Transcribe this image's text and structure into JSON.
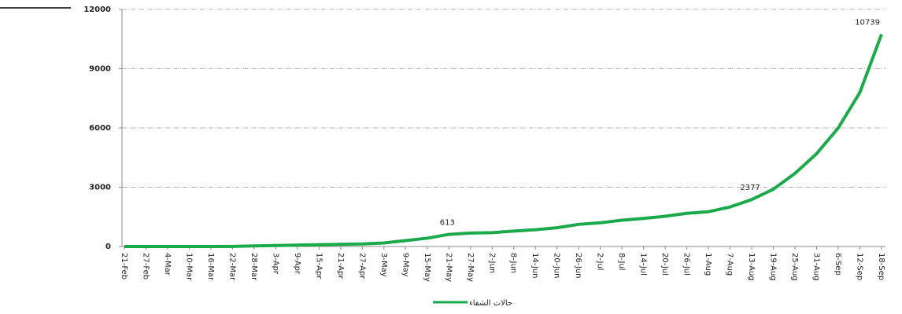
{
  "chart_data": {
    "type": "line",
    "x": [
      "21-Feb",
      "27-Feb",
      "4-Mar",
      "10-Mar",
      "16-Mar",
      "22-Mar",
      "28-Mar",
      "3-Apr",
      "9-Apr",
      "15-Apr",
      "21-Apr",
      "27-Apr",
      "3-May",
      "9-May",
      "15-May",
      "21-May",
      "27-May",
      "2-Jun",
      "8-Jun",
      "14-Jun",
      "20-Jun",
      "26-Jun",
      "2-Jul",
      "8-Jul",
      "14-Jul",
      "20-Jul",
      "26-Jul",
      "1-Aug",
      "7-Aug",
      "13-Aug",
      "19-Aug",
      "25-Aug",
      "31-Aug",
      "6-Sep",
      "12-Sep",
      "18-Sep"
    ],
    "series": [
      {
        "name": "حالات الشفاء",
        "color": "#1aaa4a",
        "values": [
          0,
          0,
          1,
          1,
          2,
          5,
          30,
          50,
          70,
          90,
          110,
          130,
          180,
          300,
          420,
          613,
          680,
          700,
          780,
          850,
          950,
          1120,
          1200,
          1330,
          1420,
          1530,
          1680,
          1760,
          2000,
          2377,
          2900,
          3700,
          4700,
          6000,
          7800,
          10739
        ],
        "value_labels": [
          null,
          null,
          null,
          null,
          null,
          null,
          null,
          null,
          null,
          null,
          null,
          null,
          null,
          null,
          null,
          "613",
          null,
          null,
          null,
          null,
          null,
          null,
          null,
          null,
          null,
          null,
          null,
          null,
          null,
          "2377",
          null,
          null,
          null,
          null,
          null,
          "10739"
        ]
      }
    ],
    "ylim": [
      0,
      12000
    ],
    "yticks": [
      0,
      3000,
      6000,
      9000,
      12000
    ],
    "grid": true,
    "legend": "bottom"
  }
}
